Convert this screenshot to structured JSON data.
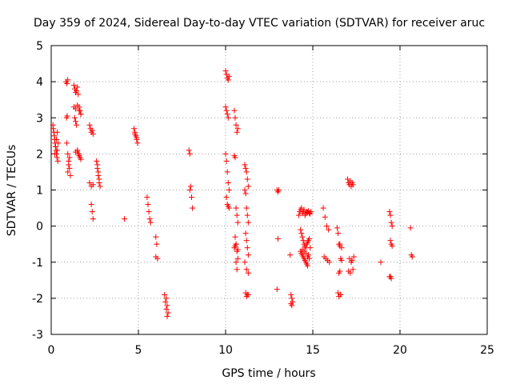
{
  "chart_data": {
    "type": "scatter",
    "title": "Day 359 of 2024, Sidereal Day-to-day VTEC variation (SDTVAR) for receiver aruc",
    "xlabel": "GPS time / hours",
    "ylabel": "SDTVAR / TECUs",
    "xlim": [
      0,
      25
    ],
    "ylim": [
      -3,
      5
    ],
    "xticks": [
      0,
      5,
      10,
      15,
      20,
      25
    ],
    "yticks": [
      -3,
      -2,
      -1,
      0,
      1,
      2,
      3,
      4,
      5
    ],
    "xtick_labels": [
      "0",
      "5",
      "10",
      "15",
      "20",
      "25"
    ],
    "ytick_labels": [
      "-3",
      "-2",
      "-1",
      "0",
      "1",
      "2",
      "3",
      "4",
      "5"
    ],
    "grid": true,
    "marker": "+",
    "marker_color": "#ff0000",
    "series": [
      {
        "name": "SDTVAR",
        "x": [
          0.1,
          0.15,
          0.2,
          0.25,
          0.3,
          0.35,
          0.4,
          0.12,
          0.18,
          0.22,
          0.28,
          0.33,
          0.38,
          0.2,
          0.25,
          0.3,
          0.35,
          0.85,
          0.9,
          0.95,
          0.88,
          0.92,
          0.9,
          0.95,
          1.0,
          1.05,
          1.1,
          0.95,
          1.0,
          1.05,
          1.3,
          1.35,
          1.4,
          1.45,
          1.5,
          1.55,
          1.6,
          1.65,
          1.7,
          1.35,
          1.4,
          1.45,
          1.5,
          1.55,
          1.6,
          1.65,
          1.4,
          1.5,
          1.6,
          1.7,
          1.3,
          1.4,
          1.5,
          1.6,
          1.7,
          2.2,
          2.25,
          2.3,
          2.35,
          2.4,
          2.2,
          2.3,
          2.4,
          2.3,
          2.35,
          2.4,
          2.6,
          2.65,
          2.7,
          2.75,
          2.8,
          2.65,
          2.7,
          2.75,
          4.2,
          4.75,
          4.8,
          4.85,
          4.9,
          4.95,
          4.8,
          4.9,
          5.5,
          5.55,
          5.6,
          5.65,
          5.7,
          6.0,
          6.05,
          6.1,
          6.0,
          6.5,
          6.55,
          6.6,
          6.65,
          6.7,
          6.6,
          6.65,
          7.9,
          7.95,
          8.0,
          8.05,
          8.1,
          7.95,
          10.0,
          10.05,
          10.1,
          10.15,
          10.2,
          10.0,
          10.05,
          10.1,
          10.15,
          10.0,
          10.05,
          10.1,
          10.15,
          10.2,
          10.05,
          10.1,
          10.15,
          10.2,
          10.5,
          10.55,
          10.6,
          10.65,
          10.7,
          10.5,
          10.55,
          10.6,
          10.65,
          10.7,
          10.55,
          10.6,
          10.65,
          10.7,
          10.6,
          10.65,
          10.5,
          10.55,
          10.6,
          10.7,
          11.1,
          11.15,
          11.2,
          11.25,
          11.3,
          11.1,
          11.15,
          11.2,
          11.25,
          11.3,
          11.15,
          11.2,
          11.25,
          11.3,
          11.1,
          11.2,
          11.3,
          11.15,
          11.25,
          11.2,
          11.3,
          12.95,
          13.0,
          13.05,
          13.0,
          12.95,
          13.7,
          13.75,
          13.8,
          13.85,
          13.75,
          13.8,
          14.2,
          14.25,
          14.3,
          14.35,
          14.4,
          14.45,
          14.5,
          14.55,
          14.6,
          14.65,
          14.7,
          14.75,
          14.8,
          14.85,
          14.9,
          14.3,
          14.35,
          14.4,
          14.45,
          14.5,
          14.55,
          14.6,
          14.65,
          14.7,
          14.75,
          14.8,
          14.3,
          14.4,
          14.5,
          14.6,
          14.7,
          14.8,
          14.35,
          14.45,
          14.55,
          14.65,
          14.75,
          14.85,
          14.4,
          14.5,
          14.6,
          14.7,
          15.6,
          15.7,
          15.8,
          15.9,
          15.75,
          15.85,
          15.65,
          15.95,
          16.4,
          16.45,
          16.5,
          16.55,
          16.6,
          16.65,
          16.5,
          16.55,
          16.45,
          16.6,
          16.5,
          16.6,
          16.55,
          16.65,
          17.0,
          17.05,
          17.1,
          17.15,
          17.2,
          17.25,
          17.3,
          17.1,
          17.2,
          17.3,
          17.05,
          17.15,
          17.25,
          17.35,
          18.9,
          19.4,
          19.45,
          19.5,
          19.55,
          19.45,
          19.5,
          19.4,
          19.5,
          19.45,
          19.55,
          20.6,
          20.65,
          20.7
        ],
        "y": [
          2.8,
          2.6,
          2.4,
          2.2,
          2.0,
          2.1,
          2.3,
          2.7,
          2.5,
          2.3,
          2.1,
          1.9,
          1.8,
          2.0,
          2.2,
          2.4,
          2.6,
          4.0,
          3.95,
          4.05,
          3.0,
          3.05,
          2.3,
          2.0,
          1.8,
          1.6,
          1.4,
          1.5,
          1.7,
          1.9,
          3.9,
          3.8,
          3.7,
          3.75,
          3.85,
          3.65,
          3.3,
          3.2,
          3.1,
          3.0,
          2.9,
          2.8,
          2.1,
          2.0,
          1.95,
          1.9,
          2.05,
          2.1,
          2.0,
          1.85,
          3.3,
          3.25,
          3.35,
          3.2,
          3.1,
          2.8,
          2.7,
          2.6,
          2.65,
          2.55,
          1.2,
          1.1,
          1.15,
          0.6,
          0.4,
          0.2,
          1.8,
          1.6,
          1.4,
          1.2,
          1.1,
          1.7,
          1.5,
          1.3,
          0.2,
          2.7,
          2.6,
          2.5,
          2.4,
          2.3,
          2.55,
          2.45,
          0.8,
          0.6,
          0.4,
          0.2,
          0.1,
          -0.3,
          -0.5,
          -0.9,
          -0.85,
          -1.9,
          -2.1,
          -2.3,
          -2.5,
          -2.4,
          -2.0,
          -2.2,
          2.1,
          2.0,
          1.1,
          0.8,
          0.5,
          1.0,
          4.3,
          4.2,
          4.1,
          4.05,
          4.15,
          3.3,
          3.2,
          3.1,
          3.0,
          2.0,
          1.8,
          1.5,
          1.2,
          1.0,
          0.8,
          0.6,
          0.55,
          0.5,
          3.2,
          3.0,
          2.8,
          2.6,
          2.7,
          1.95,
          1.9,
          0.5,
          0.3,
          0.1,
          -0.3,
          -0.5,
          -0.7,
          -0.9,
          -1.0,
          -1.2,
          -0.6,
          -0.55,
          -0.5,
          -0.65,
          1.7,
          1.6,
          1.5,
          1.3,
          1.1,
          1.0,
          0.9,
          0.5,
          0.3,
          0.1,
          -0.2,
          -0.4,
          -0.6,
          -0.8,
          -1.0,
          -1.2,
          -1.3,
          -1.85,
          -1.9,
          -1.95,
          -1.9,
          1.0,
          0.95,
          1.0,
          -0.35,
          -1.75,
          -0.8,
          -1.9,
          -2.0,
          -2.1,
          -2.15,
          -2.2,
          0.3,
          0.4,
          0.45,
          0.5,
          0.35,
          0.4,
          0.45,
          0.3,
          0.35,
          0.4,
          0.38,
          0.42,
          0.36,
          0.34,
          0.4,
          -0.1,
          -0.2,
          -0.3,
          -0.4,
          -0.5,
          -0.55,
          -0.6,
          -0.5,
          -0.45,
          -0.4,
          -0.35,
          -0.7,
          -0.8,
          -0.9,
          -1.0,
          -1.1,
          -0.9,
          -0.75,
          -0.85,
          -0.95,
          -1.05,
          -0.8,
          -0.6,
          -0.65,
          -0.7,
          -0.75,
          -0.85,
          0.5,
          0.25,
          0.0,
          -0.1,
          -0.9,
          -0.95,
          -0.85,
          -1.0,
          -0.05,
          -0.2,
          -0.5,
          -0.55,
          -0.9,
          -0.95,
          -1.3,
          -1.25,
          -1.85,
          -1.9,
          -1.95,
          -1.9,
          -0.5,
          -0.6,
          1.3,
          1.2,
          1.15,
          1.25,
          1.1,
          1.2,
          1.15,
          -0.9,
          -1.0,
          -1.2,
          -1.25,
          -1.3,
          -0.95,
          -0.85,
          -1.0,
          0.4,
          0.3,
          0.1,
          0.0,
          -0.4,
          -0.5,
          -1.4,
          -1.45,
          -1.4,
          -0.55,
          -0.05,
          -0.8,
          -0.85
        ]
      }
    ]
  }
}
